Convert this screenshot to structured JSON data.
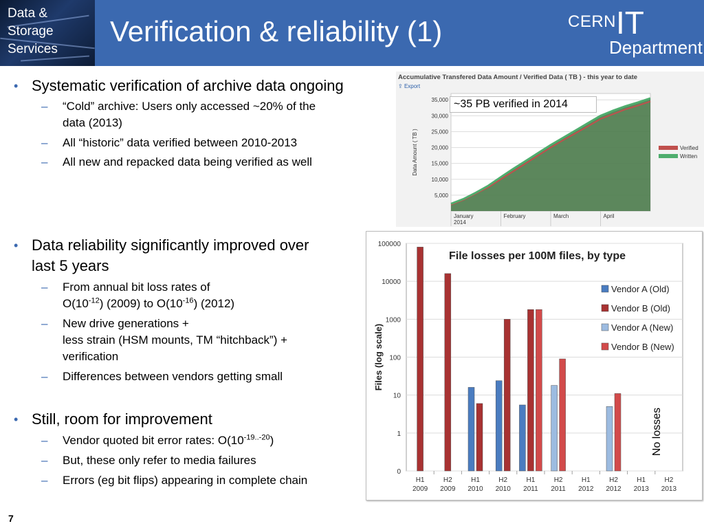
{
  "header": {
    "corner_lines": [
      "Data &",
      "Storage",
      "Services"
    ],
    "title": "Verification & reliability (1)",
    "logo": {
      "cern": "CERN",
      "it": "IT",
      "department": "Department"
    },
    "background": "#3b69b0"
  },
  "bullets": [
    {
      "text": "Systematic verification of archive data ongoing",
      "subs": [
        {
          "lines": [
            "“Cold” archive: Users only accessed ~20% of the",
            "data (2013)"
          ]
        },
        {
          "lines": [
            "All “historic” data verified between 2010-2013"
          ]
        },
        {
          "lines": [
            "All new and repacked data being verified as well"
          ]
        }
      ]
    },
    {
      "lines": [
        "Data reliability significantly improved over",
        "last 5 years"
      ],
      "subs": [
        {
          "line1": "From annual bit loss rates of",
          "line2_parts": [
            "O(10",
            "-12",
            ") (2009) to O(10",
            "-16",
            ") (2012)"
          ]
        },
        {
          "lines": [
            "New drive generations +",
            "less strain (HSM mounts, TM “hitchback”) +",
            "verification"
          ]
        },
        {
          "lines": [
            "Differences between vendors getting small"
          ]
        }
      ]
    },
    {
      "text": "Still, room for improvement",
      "subs": [
        {
          "parts": [
            "Vendor quoted bit error rates: O(10",
            "-19..-20",
            ")"
          ]
        },
        {
          "lines": [
            "But, these only refer to media failures"
          ]
        },
        {
          "lines": [
            "Errors (eg bit flips) appearing in complete chain"
          ]
        }
      ]
    }
  ],
  "chart_data": [
    {
      "type": "area",
      "title": "Accumulative Transfered Data Amount / Verified Data ( TB ) - this year to date",
      "export_label": "Export",
      "ylabel": "Data Amount ( TB )",
      "yticks": [
        "5,000",
        "10,000",
        "15,000",
        "20,000",
        "25,000",
        "30,000",
        "35,000"
      ],
      "ylim": [
        0,
        37000
      ],
      "xticks": [
        [
          "January",
          "2014"
        ],
        [
          "February"
        ],
        [
          "March"
        ],
        [
          "April"
        ]
      ],
      "x": [
        0,
        0.25,
        0.5,
        0.75,
        1.0,
        1.25,
        1.5,
        1.75,
        2.0,
        2.25,
        2.5,
        2.75,
        3.0,
        3.25,
        3.5,
        3.75,
        4.0
      ],
      "series": [
        {
          "name": "Verified",
          "color": "#c0504d",
          "values": [
            2000,
            3500,
            5500,
            7500,
            10000,
            12500,
            15000,
            17500,
            20000,
            22300,
            24500,
            26700,
            29000,
            30500,
            32000,
            33200,
            34500
          ]
        },
        {
          "name": "Written",
          "color": "#4fae6e",
          "values": [
            2300,
            3800,
            5800,
            8000,
            10700,
            13300,
            15800,
            18300,
            20800,
            23100,
            25400,
            27700,
            30000,
            31600,
            33000,
            34200,
            35500
          ]
        }
      ],
      "fill_color": "#4a7a4a",
      "legend": "right",
      "annotation": "~35 PB verified in 2014"
    },
    {
      "type": "bar",
      "title": "File losses per 100M files, by type",
      "ylabel": "Files (log scale)",
      "yscale": "log",
      "ylim": [
        0,
        100000
      ],
      "yticks": [
        "100000",
        "10000",
        "1000",
        "100",
        "10",
        "1",
        "0"
      ],
      "categories": [
        [
          "H1",
          "2009"
        ],
        [
          "H2",
          "2009"
        ],
        [
          "H1",
          "2010"
        ],
        [
          "H2",
          "2010"
        ],
        [
          "H1",
          "2011"
        ],
        [
          "H2",
          "2011"
        ],
        [
          "H1",
          "2012"
        ],
        [
          "H2",
          "2012"
        ],
        [
          "H1",
          "2013"
        ],
        [
          "H2",
          "2013"
        ]
      ],
      "series": [
        {
          "name": "Vendor A (Old)",
          "color": "#4a7cc0",
          "values": [
            null,
            null,
            16,
            24,
            5.5,
            null,
            null,
            null,
            null,
            null
          ]
        },
        {
          "name": "Vendor B (Old)",
          "color": "#a83232",
          "values": [
            80000,
            16000,
            6,
            1000,
            1800,
            null,
            null,
            null,
            null,
            null
          ]
        },
        {
          "name": "Vendor A (New)",
          "color": "#9cbbe0",
          "values": [
            null,
            null,
            null,
            null,
            null,
            18,
            null,
            5,
            null,
            null
          ]
        },
        {
          "name": "Vendor B (New)",
          "color": "#d24a4a",
          "values": [
            null,
            null,
            null,
            null,
            1800,
            90,
            null,
            11,
            null,
            null
          ]
        }
      ],
      "legend": "right",
      "annotation": "No losses"
    }
  ],
  "page_number": "7"
}
